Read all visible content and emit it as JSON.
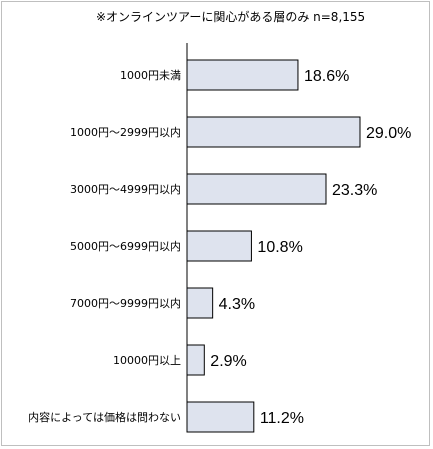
{
  "note": "※オンラインツアーに関心がある層のみ n=8,155",
  "chart_data": {
    "type": "bar",
    "orientation": "horizontal",
    "categories": [
      "1000円未満",
      "1000円～2999円以内",
      "3000円～4999円以内",
      "5000円～6999円以内",
      "7000円～9999円以内",
      "10000円以上",
      "内容によっては価格は問わない"
    ],
    "values": [
      18.6,
      29.0,
      23.3,
      10.8,
      4.3,
      2.9,
      11.2
    ],
    "value_labels": [
      "18.6%",
      "29.0%",
      "23.3%",
      "10.8%",
      "4.3%",
      "2.9%",
      "11.2%"
    ],
    "xlim": [
      0,
      29.0
    ],
    "title": "",
    "xlabel": "",
    "ylabel": "",
    "grid": false,
    "colors": {
      "bar_fill": "#dee3ee",
      "bar_stroke": "#000000",
      "axis": "#000000",
      "frame": "#bfbfbf"
    }
  }
}
